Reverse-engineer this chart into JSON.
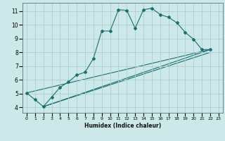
{
  "xlabel": "Humidex (Indice chaleur)",
  "bg_color": "#cce8e8",
  "grid_color": "#aacfcf",
  "line_color": "#1a7070",
  "xlim": [
    -0.5,
    23.5
  ],
  "ylim": [
    3.6,
    11.6
  ],
  "xticks": [
    0,
    1,
    2,
    3,
    4,
    5,
    6,
    7,
    8,
    9,
    10,
    11,
    12,
    13,
    14,
    15,
    16,
    17,
    18,
    19,
    20,
    21,
    22,
    23
  ],
  "yticks": [
    4,
    5,
    6,
    7,
    8,
    9,
    10,
    11
  ],
  "series": [
    [
      0,
      5.05
    ],
    [
      1,
      4.55
    ],
    [
      2,
      4.05
    ],
    [
      3,
      4.75
    ],
    [
      4,
      5.45
    ],
    [
      5,
      5.85
    ],
    [
      6,
      6.35
    ],
    [
      7,
      6.55
    ],
    [
      8,
      7.55
    ],
    [
      9,
      9.55
    ],
    [
      10,
      9.55
    ],
    [
      11,
      11.1
    ],
    [
      12,
      11.05
    ],
    [
      13,
      9.75
    ],
    [
      14,
      11.1
    ],
    [
      15,
      11.2
    ],
    [
      16,
      10.75
    ],
    [
      17,
      10.55
    ],
    [
      18,
      10.15
    ],
    [
      19,
      9.45
    ],
    [
      20,
      8.95
    ],
    [
      21,
      8.2
    ],
    [
      22,
      8.2
    ]
  ],
  "fan_lines": [
    [
      [
        0,
        5.05
      ],
      [
        22,
        8.2
      ]
    ],
    [
      [
        2,
        4.05
      ],
      [
        22,
        8.2
      ]
    ],
    [
      [
        2,
        4.05
      ],
      [
        22,
        8.0
      ]
    ]
  ]
}
